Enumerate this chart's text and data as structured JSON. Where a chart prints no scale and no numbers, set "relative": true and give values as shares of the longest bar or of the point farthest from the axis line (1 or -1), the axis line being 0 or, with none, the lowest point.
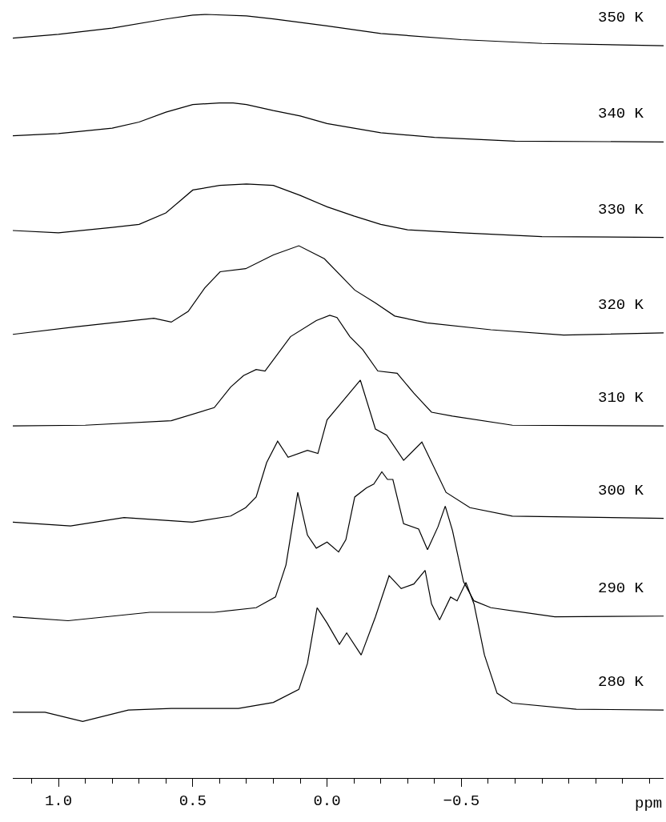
{
  "chart_data": {
    "type": "line",
    "relative": true,
    "xlabel": "ppm",
    "xlim": [
      1.17,
      -1.253
    ],
    "xticks": [
      {
        "value": 1.0,
        "label": "1.0"
      },
      {
        "value": 0.5,
        "label": "0.5"
      },
      {
        "value": 0.0,
        "label": "0.0"
      },
      {
        "value": -0.5,
        "label": "−0.5"
      }
    ],
    "legend": false,
    "marker": "none",
    "line_style": "solid",
    "tick_labels": "x",
    "series": [
      {
        "name": "350 K",
        "color": "#000000",
        "x": [
          1.17,
          1.0,
          0.8,
          0.6,
          0.5,
          0.45,
          0.3,
          0.2,
          0.0,
          -0.2,
          -0.5,
          -0.8,
          -1.253
        ],
        "values": [
          0.969,
          0.974,
          0.982,
          0.994,
          0.999,
          1.0,
          0.998,
          0.994,
          0.985,
          0.975,
          0.967,
          0.962,
          0.959
        ]
      },
      {
        "name": "340 K",
        "color": "#000000",
        "x": [
          1.17,
          1.0,
          0.8,
          0.7,
          0.6,
          0.5,
          0.4,
          0.35,
          0.3,
          0.2,
          0.1,
          0.0,
          -0.2,
          -0.4,
          -0.7,
          -1.253
        ],
        "values": [
          0.841,
          0.844,
          0.851,
          0.859,
          0.872,
          0.882,
          0.884,
          0.884,
          0.882,
          0.874,
          0.867,
          0.857,
          0.845,
          0.839,
          0.834,
          0.833
        ]
      },
      {
        "name": "330 K",
        "color": "#000000",
        "x": [
          1.17,
          1.0,
          0.8,
          0.7,
          0.6,
          0.55,
          0.5,
          0.4,
          0.3,
          0.2,
          0.1,
          0.0,
          -0.1,
          -0.2,
          -0.3,
          -0.5,
          -0.8,
          -1.253
        ],
        "values": [
          0.717,
          0.714,
          0.721,
          0.725,
          0.74,
          0.755,
          0.77,
          0.776,
          0.778,
          0.776,
          0.763,
          0.748,
          0.736,
          0.725,
          0.718,
          0.714,
          0.709,
          0.708
        ]
      },
      {
        "name": "320 K",
        "color": "#000000",
        "x": [
          1.17,
          0.931,
          0.645,
          0.58,
          0.517,
          0.455,
          0.398,
          0.303,
          0.2,
          0.105,
          0.01,
          -0.103,
          -0.18,
          -0.252,
          -0.371,
          -0.61,
          -0.881,
          -1.253
        ],
        "values": [
          0.581,
          0.591,
          0.602,
          0.597,
          0.611,
          0.642,
          0.663,
          0.667,
          0.685,
          0.697,
          0.68,
          0.639,
          0.622,
          0.605,
          0.596,
          0.587,
          0.58,
          0.583
        ]
      },
      {
        "name": "310 K",
        "color": "#000000",
        "x": [
          1.17,
          0.9,
          0.58,
          0.42,
          0.359,
          0.311,
          0.264,
          0.231,
          0.136,
          0.04,
          -0.01,
          -0.037,
          -0.085,
          -0.133,
          -0.189,
          -0.261,
          -0.323,
          -0.389,
          -0.467,
          -0.69,
          -1.253
        ],
        "values": [
          0.461,
          0.462,
          0.468,
          0.485,
          0.512,
          0.527,
          0.535,
          0.533,
          0.578,
          0.599,
          0.606,
          0.603,
          0.578,
          0.561,
          0.533,
          0.53,
          0.504,
          0.479,
          0.474,
          0.462,
          0.461
        ]
      },
      {
        "name": "300 K",
        "color": "#000000",
        "x": [
          1.17,
          0.955,
          0.756,
          0.502,
          0.359,
          0.303,
          0.264,
          0.225,
          0.184,
          0.145,
          0.073,
          0.034,
          0.0,
          -0.124,
          -0.18,
          -0.222,
          -0.285,
          -0.353,
          -0.443,
          -0.532,
          -0.69,
          -1.253
        ],
        "values": [
          0.335,
          0.33,
          0.341,
          0.335,
          0.343,
          0.354,
          0.368,
          0.413,
          0.441,
          0.42,
          0.429,
          0.425,
          0.469,
          0.521,
          0.457,
          0.449,
          0.416,
          0.44,
          0.374,
          0.354,
          0.343,
          0.34
        ]
      },
      {
        "name": "290 K",
        "color": "#000000",
        "x": [
          1.17,
          0.964,
          0.66,
          0.42,
          0.264,
          0.192,
          0.153,
          0.109,
          0.073,
          0.04,
          0.0,
          -0.043,
          -0.07,
          -0.103,
          -0.147,
          -0.174,
          -0.204,
          -0.225,
          -0.245,
          -0.285,
          -0.341,
          -0.374,
          -0.413,
          -0.44,
          -0.467,
          -0.508,
          -0.547,
          -0.61,
          -0.848,
          -1.253
        ],
        "values": [
          0.211,
          0.206,
          0.217,
          0.217,
          0.223,
          0.237,
          0.279,
          0.374,
          0.318,
          0.301,
          0.309,
          0.296,
          0.312,
          0.368,
          0.38,
          0.385,
          0.401,
          0.391,
          0.391,
          0.333,
          0.326,
          0.299,
          0.329,
          0.356,
          0.324,
          0.257,
          0.232,
          0.223,
          0.211,
          0.212
        ]
      },
      {
        "name": "280 K",
        "color": "#000000",
        "x": [
          1.17,
          1.05,
          0.91,
          0.74,
          0.58,
          0.33,
          0.2,
          0.105,
          0.073,
          0.037,
          0.0,
          -0.046,
          -0.073,
          -0.127,
          -0.18,
          -0.231,
          -0.276,
          -0.323,
          -0.365,
          -0.389,
          -0.419,
          -0.46,
          -0.484,
          -0.517,
          -0.547,
          -0.586,
          -0.633,
          -0.69,
          -0.928,
          -1.253
        ],
        "values": [
          0.086,
          0.086,
          0.074,
          0.089,
          0.091,
          0.091,
          0.099,
          0.116,
          0.15,
          0.223,
          0.203,
          0.175,
          0.19,
          0.161,
          0.211,
          0.265,
          0.248,
          0.254,
          0.272,
          0.228,
          0.207,
          0.237,
          0.232,
          0.256,
          0.228,
          0.161,
          0.111,
          0.098,
          0.09,
          0.089
        ]
      }
    ]
  }
}
